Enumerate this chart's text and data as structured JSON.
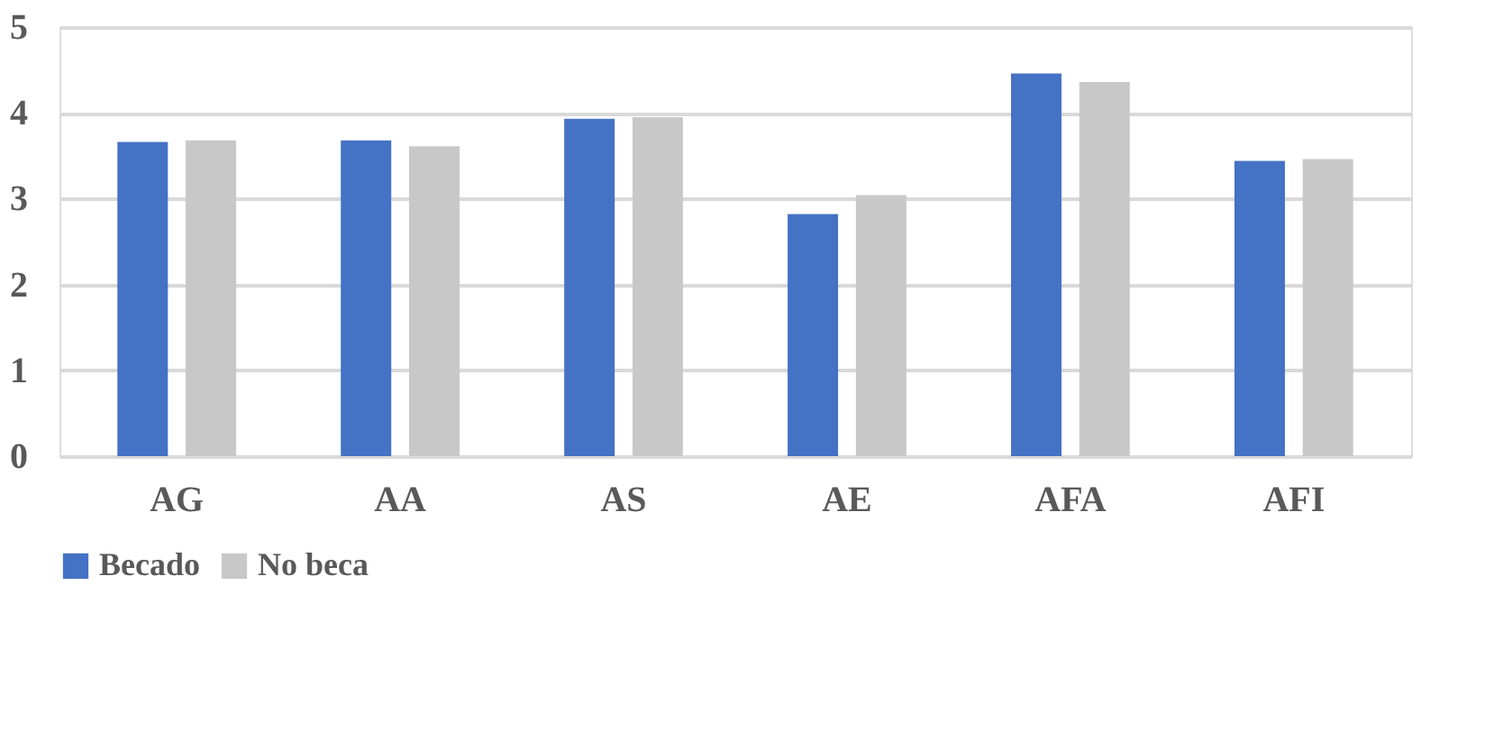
{
  "chart_data": {
    "type": "bar",
    "categories": [
      "AG",
      "AA",
      "AS",
      "AE",
      "AFA",
      "AFI"
    ],
    "series": [
      {
        "name": "Becado",
        "color": "#4472c4",
        "values": [
          3.66,
          3.68,
          3.93,
          2.82,
          4.46,
          3.44
        ]
      },
      {
        "name": "No beca",
        "color": "#c8c8c8",
        "values": [
          3.68,
          3.61,
          3.95,
          3.04,
          4.36,
          3.46
        ]
      }
    ],
    "ylim": [
      0,
      5
    ],
    "yticks": [
      0,
      1,
      2,
      3,
      4,
      5
    ],
    "grid": "y",
    "legend": "bottom"
  }
}
